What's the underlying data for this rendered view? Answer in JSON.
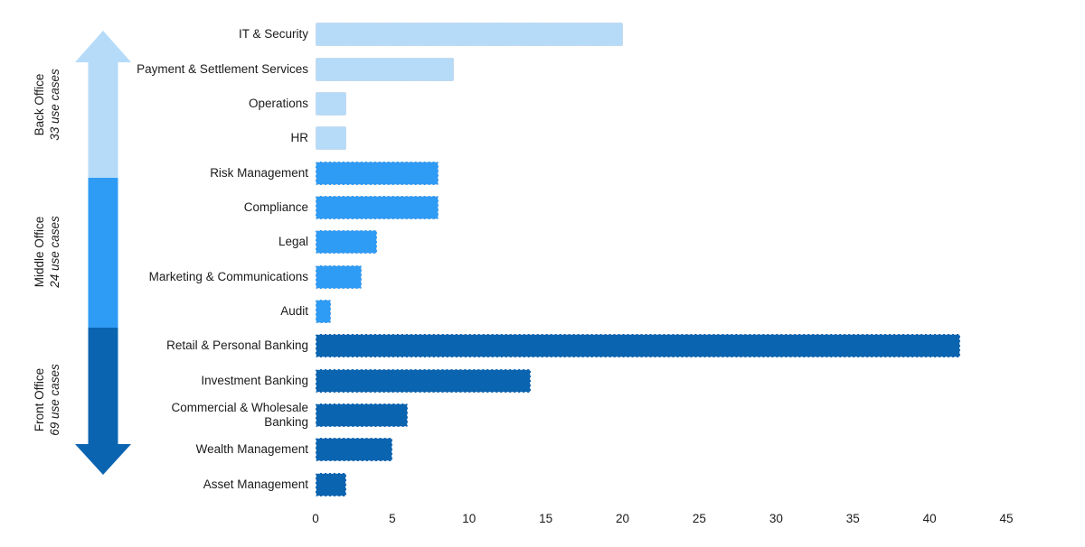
{
  "colors": {
    "back_office": "#B5DBF9",
    "middle_office": "#2E9BF5",
    "front_office": "#0B64B0",
    "text": "#1B1B1B",
    "bar_border": "#CBD9E8",
    "background": "#FFFFFF"
  },
  "groups": [
    {
      "name": "Back Office",
      "count_label": "33 use cases",
      "color_key": "back_office"
    },
    {
      "name": "Middle Office",
      "count_label": "24 use cases",
      "color_key": "middle_office"
    },
    {
      "name": "Front Office",
      "count_label": "69 use cases",
      "color_key": "front_office"
    }
  ],
  "arrow": {
    "description": "vertical double-headed block arrow spanning all rows, colored per office group"
  },
  "chart_data": {
    "type": "bar",
    "orientation": "horizontal",
    "title": "",
    "xlabel": "",
    "ylabel": "",
    "xlim": [
      0,
      45
    ],
    "xticks": [
      0,
      5,
      10,
      15,
      20,
      25,
      30,
      35,
      40,
      45
    ],
    "grid": false,
    "legend": false,
    "categories": [
      "IT & Security",
      "Payment & Settlement Services",
      "Operations",
      "HR",
      "Risk Management",
      "Compliance",
      "Legal",
      "Marketing & Communications",
      "Audit",
      "Retail & Personal Banking",
      "Investment Banking",
      "Commercial & Wholesale Banking",
      "Wealth Management",
      "Asset Management"
    ],
    "values": [
      20,
      9,
      2,
      2,
      8,
      8,
      4,
      3,
      1,
      42,
      14,
      6,
      5,
      2
    ],
    "bar_groups": [
      "back_office",
      "back_office",
      "back_office",
      "back_office",
      "middle_office",
      "middle_office",
      "middle_office",
      "middle_office",
      "middle_office",
      "front_office",
      "front_office",
      "front_office",
      "front_office",
      "front_office"
    ]
  }
}
